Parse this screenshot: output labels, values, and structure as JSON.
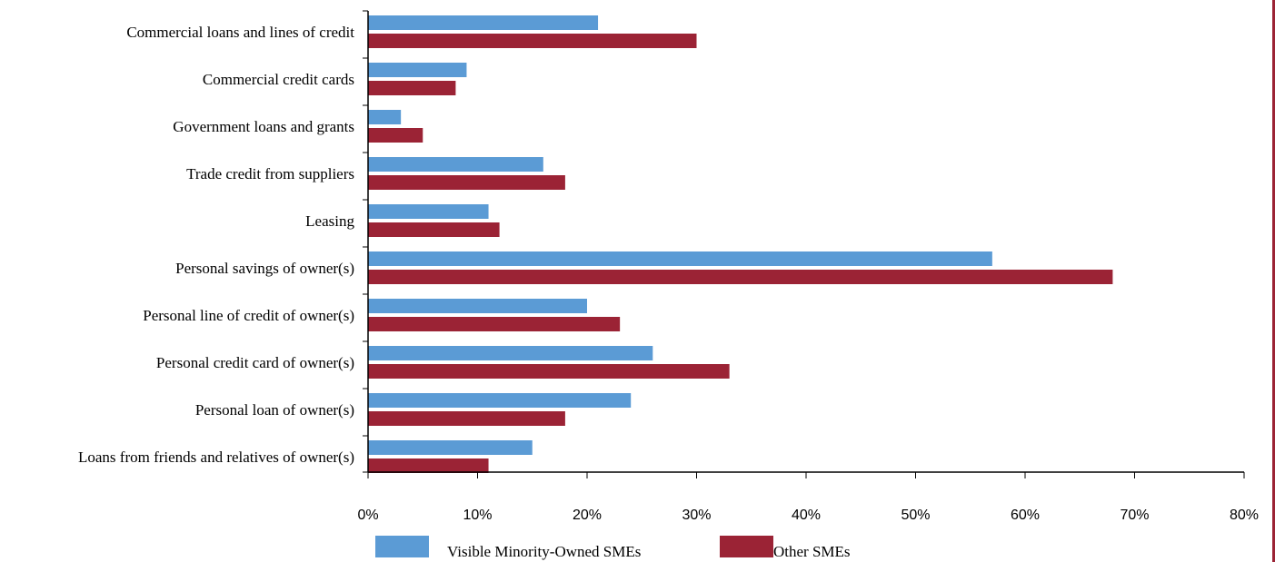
{
  "chart_data": {
    "type": "bar",
    "orientation": "horizontal",
    "categories": [
      "Commercial loans and lines of credit",
      "Commercial credit cards",
      "Government loans and grants",
      "Trade credit from suppliers",
      "Leasing",
      "Personal savings of owner(s)",
      "Personal line of credit of owner(s)",
      "Personal credit card of owner(s)",
      "Personal loan of owner(s)",
      "Loans from friends and relatives of owner(s)"
    ],
    "series": [
      {
        "name": "Visible Minority-Owned SMEs",
        "color": "#5b9bd5",
        "values": [
          21,
          9,
          3,
          16,
          11,
          57,
          20,
          26,
          24,
          15
        ]
      },
      {
        "name": "Other SMEs",
        "color": "#9b2335",
        "values": [
          30,
          8,
          5,
          18,
          12,
          68,
          23,
          33,
          18,
          11
        ]
      }
    ],
    "xlim": [
      0,
      80
    ],
    "xticks": [
      "0%",
      "10%",
      "20%",
      "30%",
      "40%",
      "50%",
      "60%",
      "70%",
      "80%"
    ],
    "title": "",
    "xlabel": "",
    "ylabel": "",
    "grid": false,
    "legend_position": "bottom"
  },
  "decor": {
    "right_rule_color": "#9b2335"
  }
}
